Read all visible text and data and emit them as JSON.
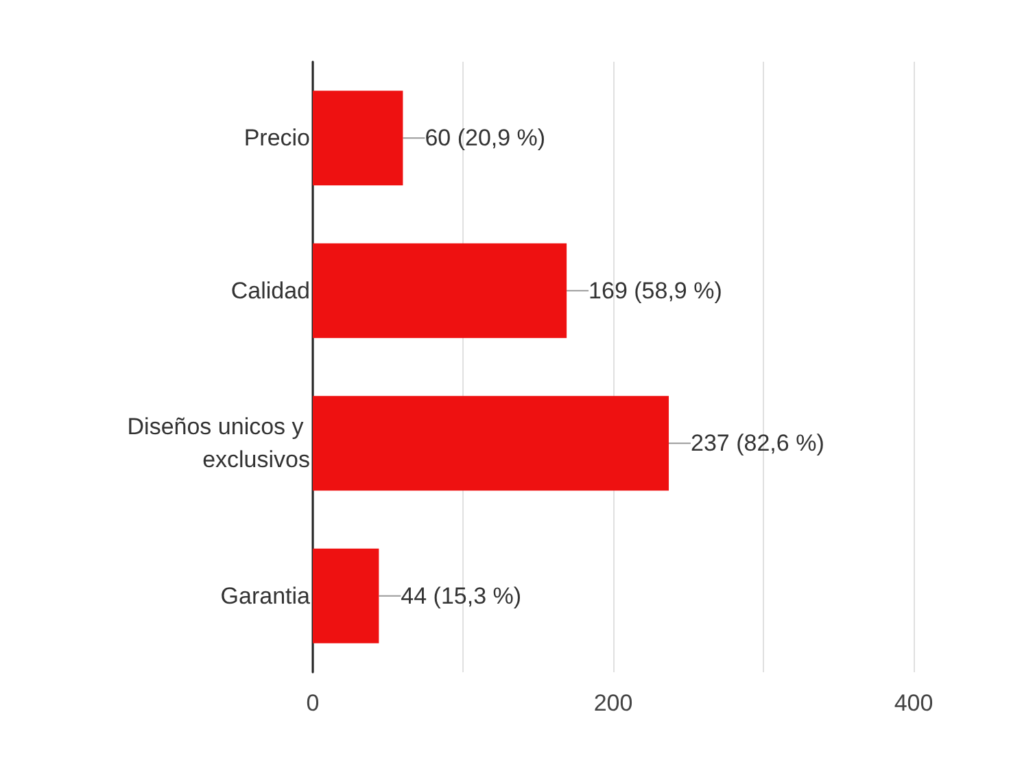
{
  "chart_data": {
    "type": "bar",
    "orientation": "horizontal",
    "categories": [
      "Precio",
      "Calidad",
      "Diseños unicos y exclusivos",
      "Garantia"
    ],
    "values": [
      60,
      169,
      237,
      44
    ],
    "value_labels": [
      "60 (20,9 %)",
      "169 (58,9 %)",
      "237 (82,6 %)",
      "44 (15,3 %)"
    ],
    "color": "#ee1111",
    "xlim": [
      0,
      400
    ],
    "xticks": [
      0,
      {
        "value": 100,
        "label": null
      },
      200,
      {
        "value": 300,
        "label": null
      },
      400
    ],
    "grid": "x"
  }
}
